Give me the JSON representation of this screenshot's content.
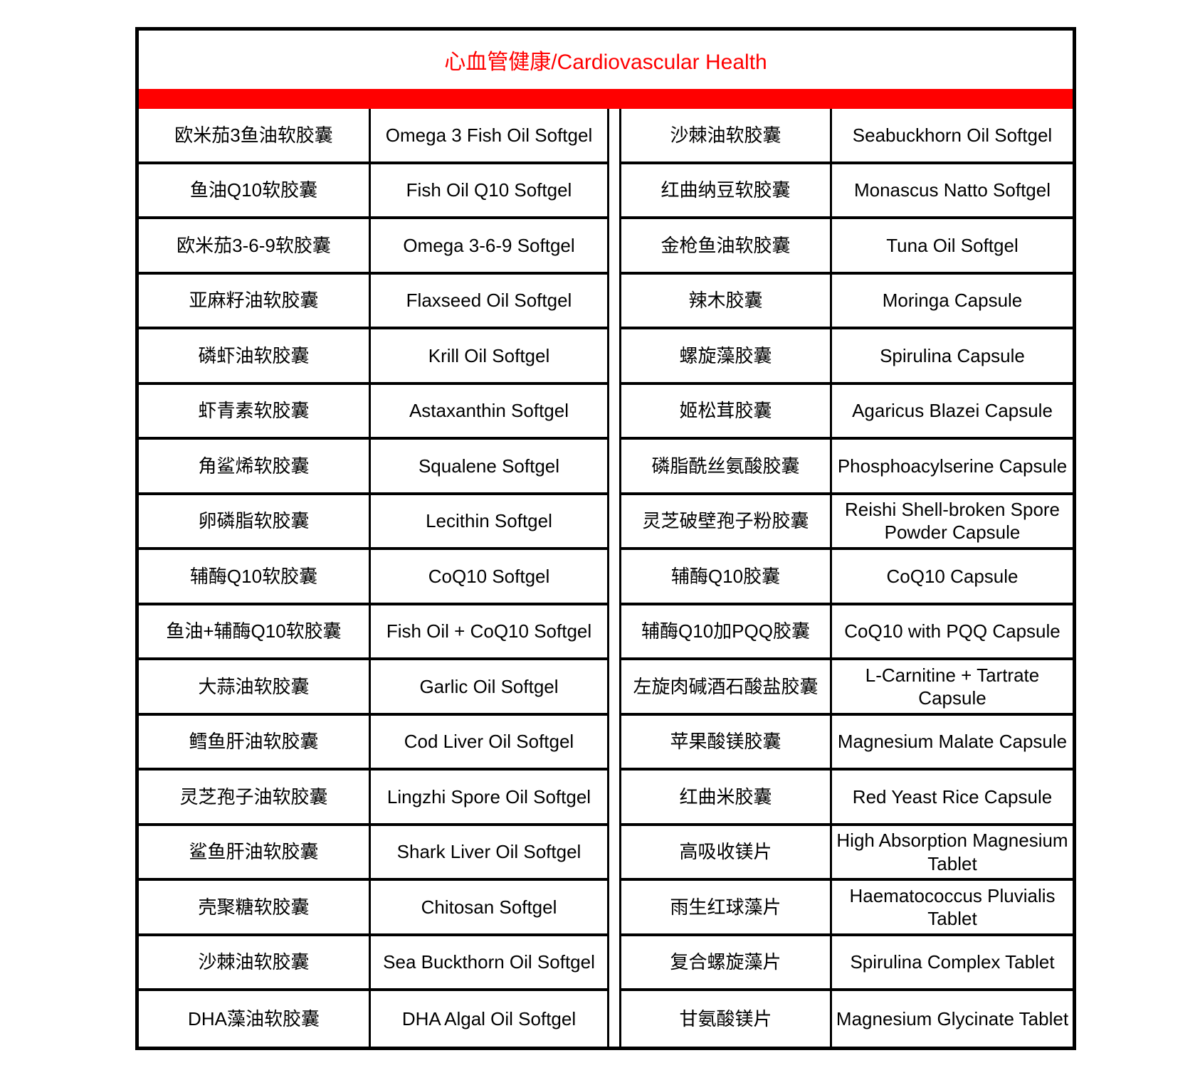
{
  "title": "心血管健康/Cardiovascular Health",
  "colors": {
    "accent": "#ff0000",
    "border": "#000000"
  },
  "rows": [
    [
      "欧米茄3鱼油软胶囊",
      "Omega 3 Fish Oil Softgel",
      "沙棘油软胶囊",
      "Seabuckhorn Oil Softgel"
    ],
    [
      "鱼油Q10软胶囊",
      "Fish Oil Q10 Softgel",
      "红曲纳豆软胶囊",
      "Monascus Natto Softgel"
    ],
    [
      "欧米茄3-6-9软胶囊",
      "Omega 3-6-9 Softgel",
      "金枪鱼油软胶囊",
      "Tuna Oil Softgel"
    ],
    [
      "亚麻籽油软胶囊",
      "Flaxseed Oil Softgel",
      "辣木胶囊",
      "Moringa Capsule"
    ],
    [
      "磷虾油软胶囊",
      "Krill Oil Softgel",
      "螺旋藻胶囊",
      "Spirulina Capsule"
    ],
    [
      "虾青素软胶囊",
      "Astaxanthin Softgel",
      "姬松茸胶囊",
      "Agaricus Blazei Capsule"
    ],
    [
      "角鲨烯软胶囊",
      "Squalene Softgel",
      "磷脂酰丝氨酸胶囊",
      "Phosphoacylserine Capsule"
    ],
    [
      "卵磷脂软胶囊",
      "Lecithin Softgel",
      "灵芝破壁孢子粉胶囊",
      "Reishi Shell-broken Spore Powder Capsule"
    ],
    [
      "辅酶Q10软胶囊",
      "CoQ10 Softgel",
      "辅酶Q10胶囊",
      "CoQ10 Capsule"
    ],
    [
      "鱼油+辅酶Q10软胶囊",
      "Fish Oil + CoQ10 Softgel",
      "辅酶Q10加PQQ胶囊",
      "CoQ10 with PQQ Capsule"
    ],
    [
      "大蒜油软胶囊",
      "Garlic Oil Softgel",
      "左旋肉碱酒石酸盐胶囊",
      "L-Carnitine + Tartrate Capsule"
    ],
    [
      "鳕鱼肝油软胶囊",
      "Cod Liver Oil Softgel",
      "苹果酸镁胶囊",
      "Magnesium Malate Capsule"
    ],
    [
      "灵芝孢子油软胶囊",
      "Lingzhi Spore Oil Softgel",
      "红曲米胶囊",
      "Red Yeast Rice Capsule"
    ],
    [
      "鲨鱼肝油软胶囊",
      "Shark Liver Oil Softgel",
      "高吸收镁片",
      "High Absorption Magnesium Tablet"
    ],
    [
      "壳聚糖软胶囊",
      "Chitosan Softgel",
      "雨生红球藻片",
      "Haematococcus Pluvialis Tablet"
    ],
    [
      "沙棘油软胶囊",
      "Sea Buckthorn Oil  Softgel",
      "复合螺旋藻片",
      "Spirulina Complex Tablet"
    ],
    [
      "DHA藻油软胶囊",
      "DHA Algal Oil Softgel",
      "甘氨酸镁片",
      "Magnesium Glycinate Tablet"
    ]
  ]
}
